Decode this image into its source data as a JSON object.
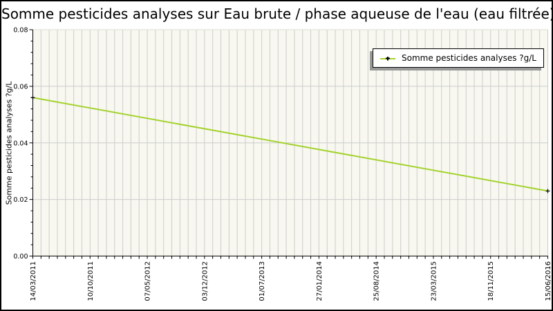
{
  "chart_data": {
    "type": "line",
    "title": "Somme pesticides analyses sur Eau brute / phase aqueuse de l'eau (eau filtrée)",
    "ylabel": "Somme pesticides analyses ?g/L",
    "legend": {
      "label": "Somme pesticides analyses ?g/L",
      "position": "top-right"
    },
    "x_labels": [
      "14/03/2011",
      "10/10/2011",
      "07/05/2012",
      "03/12/2012",
      "01/07/2013",
      "27/01/2014",
      "25/08/2014",
      "23/03/2015",
      "18/11/2015",
      "15/06/2016"
    ],
    "x_axis": {
      "gridlines_total": 64,
      "label_every_n_gridlines": 7,
      "unit": "date"
    },
    "y_axis": {
      "min": 0,
      "max": 0.08,
      "tick_values": [
        0,
        0.02,
        0.04,
        0.06,
        0.08
      ],
      "tick_labels": [
        "0.00",
        "0.02",
        "0.04",
        "0.06",
        "0.08"
      ],
      "minor_tick_step": 0.004,
      "grid_values": [
        0.02,
        0.04,
        0.06
      ]
    },
    "series": [
      {
        "name": "Somme pesticides analyses ?g/L",
        "color": "#a3d22b",
        "marker": "black-cross",
        "points": [
          {
            "date": "14/03/2011",
            "value": 0.056
          },
          {
            "date": "15/06/2016",
            "value": 0.023
          }
        ]
      }
    ],
    "colors": {
      "page_bg": "#ffffff",
      "plot_bg": "#f8f8f0",
      "grid": "#cccccc",
      "plot_top_edge": "#ddddd3",
      "axis": "#000000",
      "text": "#000000"
    },
    "grid": "on"
  }
}
